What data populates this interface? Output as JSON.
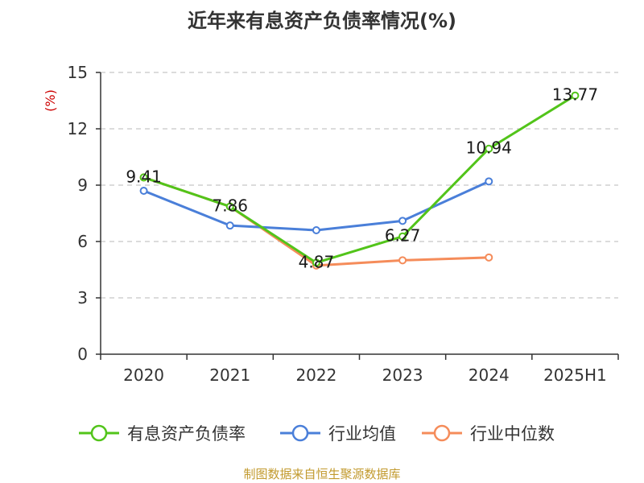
{
  "chart_data": {
    "type": "line",
    "title": "近年来有息资产负债率情况(%)",
    "ylabel": "(%)",
    "xlabel": "",
    "categories": [
      "2020",
      "2021",
      "2022",
      "2023",
      "2024",
      "2025H1"
    ],
    "ylim": [
      0,
      15
    ],
    "yticks": [
      0,
      3,
      6,
      9,
      12,
      15
    ],
    "grid": true,
    "legend_position": "bottom",
    "series": [
      {
        "name": "有息资产负债率",
        "color": "#52c41a",
        "values": [
          9.41,
          7.86,
          4.87,
          6.27,
          10.94,
          13.77
        ],
        "labels": [
          "9.41",
          "7.86",
          "4.87",
          "6.27",
          "10.94",
          "13.77"
        ]
      },
      {
        "name": "行业均值",
        "color": "#4a7fd9",
        "values": [
          8.7,
          6.85,
          6.6,
          7.1,
          9.2,
          null
        ],
        "labels": []
      },
      {
        "name": "行业中位数",
        "color": "#f58c5a",
        "values": [
          9.41,
          7.86,
          4.72,
          5.0,
          5.15,
          null
        ],
        "labels": []
      }
    ]
  },
  "source_text": "制图数据来自恒生聚源数据库"
}
